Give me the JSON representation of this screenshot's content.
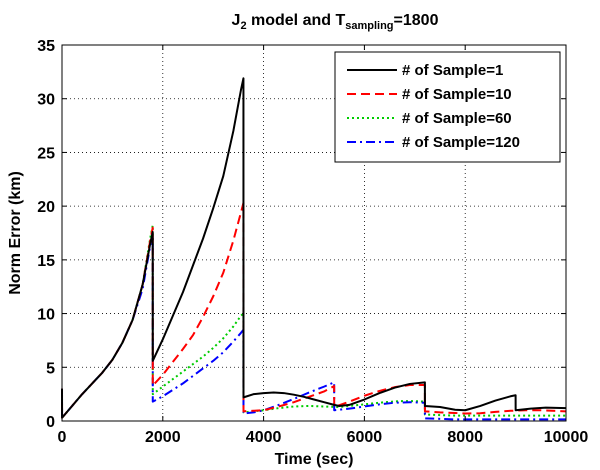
{
  "chart_data": {
    "type": "line",
    "title": {
      "prefix": "J",
      "prefix_sub": "2",
      "middle": " model and T",
      "middle_sub": "sampling",
      "suffix": "=1800"
    },
    "xlabel": "Time (sec)",
    "ylabel": "Norm Error (km)",
    "xlim": [
      0,
      10000
    ],
    "ylim": [
      0,
      35
    ],
    "xticks": [
      0,
      2000,
      4000,
      6000,
      8000,
      10000
    ],
    "yticks": [
      0,
      5,
      10,
      15,
      20,
      25,
      30,
      35
    ],
    "grid": true,
    "legend_position": "top-right",
    "series": [
      {
        "name": "# of Sample=1",
        "color": "#000000",
        "dash": "solid",
        "points": [
          [
            0,
            3.0
          ],
          [
            1,
            0.3
          ],
          [
            200,
            1.4
          ],
          [
            400,
            2.5
          ],
          [
            600,
            3.5
          ],
          [
            800,
            4.5
          ],
          [
            1000,
            5.7
          ],
          [
            1200,
            7.3
          ],
          [
            1400,
            9.4
          ],
          [
            1600,
            12.7
          ],
          [
            1750,
            16.5
          ],
          [
            1800,
            17.6
          ],
          [
            1801,
            5.6
          ],
          [
            2000,
            7.6
          ],
          [
            2200,
            9.8
          ],
          [
            2400,
            12.0
          ],
          [
            2600,
            14.5
          ],
          [
            2800,
            17.0
          ],
          [
            3000,
            19.8
          ],
          [
            3200,
            22.8
          ],
          [
            3400,
            27.0
          ],
          [
            3550,
            30.8
          ],
          [
            3600,
            31.9
          ],
          [
            3601,
            2.2
          ],
          [
            3800,
            2.5
          ],
          [
            4000,
            2.6
          ],
          [
            4200,
            2.65
          ],
          [
            4400,
            2.6
          ],
          [
            4600,
            2.45
          ],
          [
            4800,
            2.25
          ],
          [
            5000,
            2.0
          ],
          [
            5200,
            1.75
          ],
          [
            5400,
            1.5
          ],
          [
            5500,
            1.4
          ],
          [
            5700,
            1.5
          ],
          [
            6000,
            2.0
          ],
          [
            6300,
            2.6
          ],
          [
            6600,
            3.1
          ],
          [
            6900,
            3.45
          ],
          [
            7200,
            3.6
          ],
          [
            7201,
            1.4
          ],
          [
            7500,
            1.3
          ],
          [
            7800,
            1.05
          ],
          [
            8000,
            1.0
          ],
          [
            8300,
            1.4
          ],
          [
            8600,
            1.9
          ],
          [
            8900,
            2.3
          ],
          [
            9000,
            2.4
          ],
          [
            9001,
            1.0
          ],
          [
            9300,
            1.15
          ],
          [
            9600,
            1.25
          ],
          [
            10000,
            1.2
          ]
        ]
      },
      {
        "name": "# of Sample=10",
        "color": "#ff0000",
        "dash": "dashed",
        "points": [
          [
            0,
            3.0
          ],
          [
            1,
            0.3
          ],
          [
            200,
            1.4
          ],
          [
            400,
            2.5
          ],
          [
            600,
            3.5
          ],
          [
            800,
            4.5
          ],
          [
            1000,
            5.7
          ],
          [
            1200,
            7.3
          ],
          [
            1400,
            9.4
          ],
          [
            1600,
            12.7
          ],
          [
            1750,
            16.8
          ],
          [
            1800,
            18.0
          ],
          [
            1801,
            3.3
          ],
          [
            2000,
            4.3
          ],
          [
            2200,
            5.5
          ],
          [
            2400,
            6.7
          ],
          [
            2600,
            8.0
          ],
          [
            2800,
            9.7
          ],
          [
            3000,
            11.6
          ],
          [
            3200,
            13.8
          ],
          [
            3400,
            16.8
          ],
          [
            3550,
            19.4
          ],
          [
            3600,
            20.3
          ],
          [
            3601,
            0.9
          ],
          [
            3800,
            0.95
          ],
          [
            4000,
            1.0
          ],
          [
            4300,
            1.35
          ],
          [
            4600,
            1.75
          ],
          [
            4900,
            2.25
          ],
          [
            5200,
            2.75
          ],
          [
            5400,
            3.25
          ],
          [
            5401,
            1.3
          ],
          [
            5700,
            1.8
          ],
          [
            6000,
            2.35
          ],
          [
            6300,
            2.8
          ],
          [
            6600,
            3.15
          ],
          [
            6900,
            3.35
          ],
          [
            7200,
            3.35
          ],
          [
            7201,
            0.9
          ],
          [
            7500,
            0.8
          ],
          [
            7800,
            0.75
          ],
          [
            8000,
            0.7
          ],
          [
            8300,
            0.72
          ],
          [
            8600,
            0.85
          ],
          [
            8900,
            0.95
          ],
          [
            9200,
            1.0
          ],
          [
            9500,
            1.0
          ],
          [
            10000,
            0.9
          ]
        ]
      },
      {
        "name": "# of Sample=60",
        "color": "#00cc00",
        "dash": "dotted",
        "points": [
          [
            0,
            3.0
          ],
          [
            1,
            0.3
          ],
          [
            200,
            1.4
          ],
          [
            400,
            2.5
          ],
          [
            600,
            3.5
          ],
          [
            800,
            4.5
          ],
          [
            1000,
            5.7
          ],
          [
            1200,
            7.3
          ],
          [
            1400,
            9.4
          ],
          [
            1600,
            12.7
          ],
          [
            1750,
            17.0
          ],
          [
            1800,
            18.2
          ],
          [
            1801,
            2.5
          ],
          [
            2000,
            3.2
          ],
          [
            2200,
            3.9
          ],
          [
            2400,
            4.6
          ],
          [
            2600,
            5.3
          ],
          [
            2800,
            6.0
          ],
          [
            3000,
            6.8
          ],
          [
            3200,
            7.7
          ],
          [
            3400,
            8.8
          ],
          [
            3550,
            9.8
          ],
          [
            3600,
            10.0
          ],
          [
            3601,
            0.8
          ],
          [
            3800,
            0.9
          ],
          [
            4000,
            1.0
          ],
          [
            4300,
            1.2
          ],
          [
            4600,
            1.35
          ],
          [
            4900,
            1.4
          ],
          [
            5200,
            1.35
          ],
          [
            5450,
            1.3
          ],
          [
            5600,
            1.35
          ],
          [
            5800,
            1.45
          ],
          [
            6100,
            1.6
          ],
          [
            6400,
            1.75
          ],
          [
            6700,
            1.85
          ],
          [
            7000,
            1.85
          ],
          [
            7200,
            1.8
          ],
          [
            7201,
            0.6
          ],
          [
            7500,
            0.55
          ],
          [
            7800,
            0.5
          ],
          [
            8000,
            0.5
          ],
          [
            8300,
            0.5
          ],
          [
            8600,
            0.5
          ],
          [
            9000,
            0.5
          ],
          [
            9500,
            0.5
          ],
          [
            10000,
            0.5
          ]
        ]
      },
      {
        "name": "# of Sample=120",
        "color": "#0000ff",
        "dash": "dashdot",
        "points": [
          [
            0,
            3.0
          ],
          [
            1,
            0.3
          ],
          [
            200,
            1.4
          ],
          [
            400,
            2.5
          ],
          [
            600,
            3.5
          ],
          [
            800,
            4.5
          ],
          [
            1000,
            5.7
          ],
          [
            1200,
            7.3
          ],
          [
            1400,
            9.4
          ],
          [
            1600,
            12.3
          ],
          [
            1750,
            16.3
          ],
          [
            1800,
            17.3
          ],
          [
            1801,
            1.8
          ],
          [
            2000,
            2.3
          ],
          [
            2200,
            2.9
          ],
          [
            2400,
            3.5
          ],
          [
            2600,
            4.2
          ],
          [
            2800,
            4.9
          ],
          [
            3000,
            5.6
          ],
          [
            3200,
            6.4
          ],
          [
            3400,
            7.4
          ],
          [
            3550,
            8.2
          ],
          [
            3600,
            8.5
          ],
          [
            3601,
            0.7
          ],
          [
            3800,
            0.8
          ],
          [
            4000,
            1.0
          ],
          [
            4300,
            1.5
          ],
          [
            4600,
            2.05
          ],
          [
            4900,
            2.65
          ],
          [
            5200,
            3.2
          ],
          [
            5400,
            3.6
          ],
          [
            5401,
            1.0
          ],
          [
            5700,
            1.15
          ],
          [
            6000,
            1.35
          ],
          [
            6300,
            1.55
          ],
          [
            6600,
            1.7
          ],
          [
            6900,
            1.75
          ],
          [
            7200,
            1.7
          ],
          [
            7201,
            0.25
          ],
          [
            7500,
            0.2
          ],
          [
            7800,
            0.15
          ],
          [
            8000,
            0.15
          ],
          [
            8300,
            0.15
          ],
          [
            8600,
            0.15
          ],
          [
            9000,
            0.15
          ],
          [
            9500,
            0.15
          ],
          [
            10000,
            0.15
          ]
        ]
      }
    ]
  }
}
